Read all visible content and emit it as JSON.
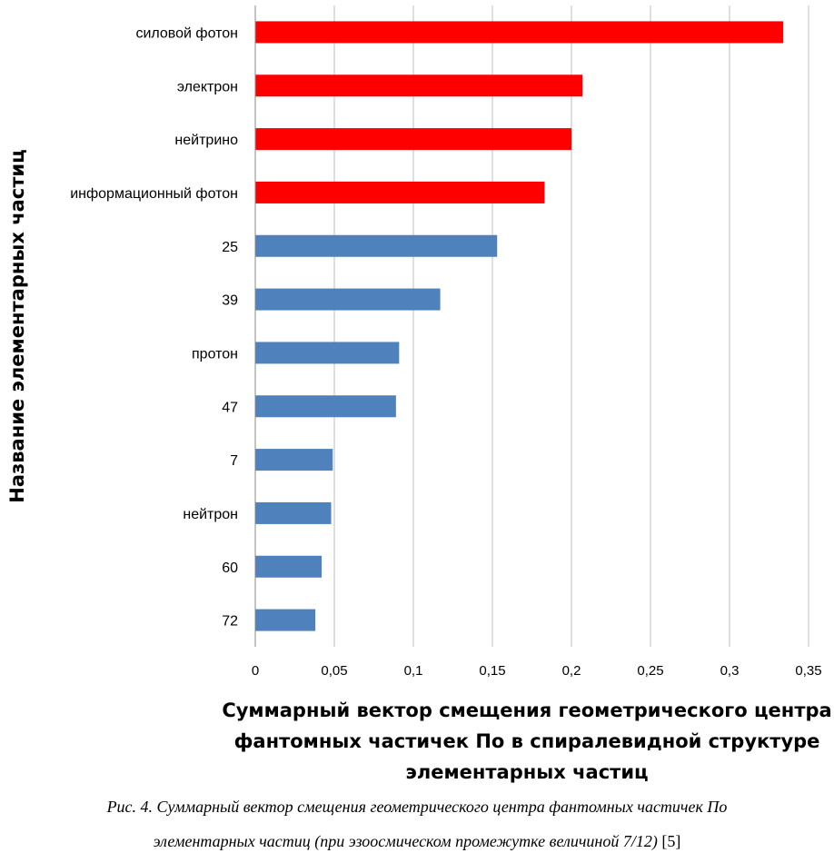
{
  "chart_data": {
    "type": "bar",
    "orientation": "horizontal",
    "categories": [
      "силовой фотон",
      "электрон",
      "нейтрино",
      "информационный фотон",
      "25",
      "39",
      "протон",
      "47",
      "7",
      "нейтрон",
      "60",
      "72"
    ],
    "values": [
      0.334,
      0.207,
      0.2,
      0.183,
      0.153,
      0.117,
      0.091,
      0.089,
      0.049,
      0.048,
      0.042,
      0.038
    ],
    "bar_colors": [
      "#ff0000",
      "#ff0000",
      "#ff0000",
      "#ff0000",
      "#4f81bd",
      "#4f81bd",
      "#4f81bd",
      "#4f81bd",
      "#4f81bd",
      "#4f81bd",
      "#4f81bd",
      "#4f81bd"
    ],
    "xlim": [
      0,
      0.35
    ],
    "x_ticks": [
      "0",
      "0,05",
      "0,1",
      "0,15",
      "0,2",
      "0,25",
      "0,3",
      "0,35"
    ],
    "xlabel_lines": [
      "Суммарный вектор смещения геометрического центра",
      "фантомных частичек По в спиралевидной структуре",
      "элементарных частиц"
    ],
    "ylabel": "Название элементарных частиц",
    "grid": "vertical",
    "legend": "none"
  },
  "caption": {
    "line1": "Рис. 4. Суммарный вектор смещения геометрического центра фантомных частичек По",
    "line2": "элементарных частиц (при эзоосмическом промежутке величиной 7/12)",
    "ref": "[5]"
  }
}
